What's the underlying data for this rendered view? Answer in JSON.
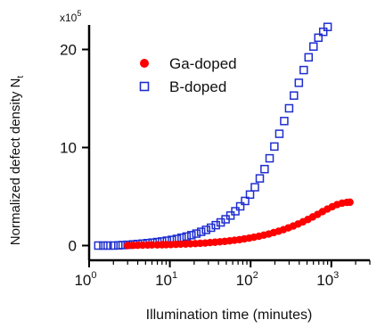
{
  "chart_data": {
    "type": "scatter",
    "xlabel": "Illumination time (minutes)",
    "ylabel": "Normalized defect density N",
    "ylabel_subscript": "t",
    "y_multiplier": "x10",
    "y_multiplier_exponent": "5",
    "x_scale": "log",
    "xlim": [
      1.0,
      3000
    ],
    "ylim": [
      -1.5,
      22.5
    ],
    "grid": false,
    "legend_position": "top-left",
    "x_ticks": [
      {
        "value": 1,
        "base": "10",
        "exp": "0"
      },
      {
        "value": 10,
        "base": "10",
        "exp": "1"
      },
      {
        "value": 100,
        "base": "10",
        "exp": "2"
      },
      {
        "value": 1000,
        "base": "10",
        "exp": "3"
      }
    ],
    "y_ticks": [
      {
        "value": 0,
        "label": "0"
      },
      {
        "value": 10,
        "label": "10"
      },
      {
        "value": 20,
        "label": "20"
      }
    ],
    "series": [
      {
        "name": "Ga-doped",
        "marker": "filled-circle",
        "color": "#ff0000",
        "x": [
          3,
          3.5,
          4,
          4.6,
          5.3,
          6,
          7,
          8,
          9,
          10.3,
          11.9,
          13.6,
          15.7,
          18,
          20.7,
          23.8,
          27.4,
          31.5,
          36.2,
          41.6,
          47.8,
          55,
          63.2,
          72.7,
          83.5,
          96,
          110,
          127,
          146,
          168,
          193,
          222,
          255,
          293,
          337,
          387,
          445,
          512,
          588,
          676,
          777,
          893,
          1026,
          1180,
          1356,
          1560,
          1700
        ],
        "y": [
          0.0,
          0.02,
          0.03,
          0.04,
          0.05,
          0.06,
          0.07,
          0.08,
          0.09,
          0.1,
          0.12,
          0.14,
          0.16,
          0.18,
          0.2,
          0.23,
          0.26,
          0.3,
          0.34,
          0.38,
          0.43,
          0.48,
          0.54,
          0.6,
          0.68,
          0.76,
          0.85,
          0.95,
          1.06,
          1.18,
          1.32,
          1.46,
          1.62,
          1.8,
          1.99,
          2.2,
          2.42,
          2.66,
          2.92,
          3.18,
          3.46,
          3.72,
          3.96,
          4.18,
          4.32,
          4.4,
          4.42
        ]
      },
      {
        "name": "B-doped",
        "marker": "open-square",
        "color": "#1f2ecf",
        "x": [
          1.3,
          1.5,
          1.7,
          2.0,
          2.3,
          2.6,
          3.0,
          3.5,
          4.0,
          4.6,
          5.3,
          6.1,
          7.0,
          8.0,
          9.2,
          10.6,
          12.2,
          14.0,
          16.1,
          18.5,
          21.3,
          24.4,
          28.1,
          32.3,
          37.1,
          42.6,
          49.0,
          56.3,
          64.7,
          74.4,
          85.5,
          98.3,
          113,
          130,
          149,
          172,
          197,
          227,
          261,
          300,
          344,
          396,
          455,
          523,
          601,
          691,
          794,
          900
        ],
        "y": [
          0.0,
          0.0,
          0.0,
          0.0,
          0.02,
          0.05,
          0.08,
          0.12,
          0.16,
          0.2,
          0.25,
          0.3,
          0.36,
          0.42,
          0.5,
          0.58,
          0.68,
          0.8,
          0.92,
          1.06,
          1.22,
          1.4,
          1.6,
          1.82,
          2.08,
          2.36,
          2.68,
          3.06,
          3.5,
          4.0,
          4.55,
          5.2,
          5.95,
          6.85,
          7.8,
          8.9,
          10.1,
          11.4,
          12.7,
          14.0,
          15.3,
          16.6,
          17.9,
          19.2,
          20.3,
          21.2,
          21.8,
          22.3
        ]
      }
    ]
  }
}
